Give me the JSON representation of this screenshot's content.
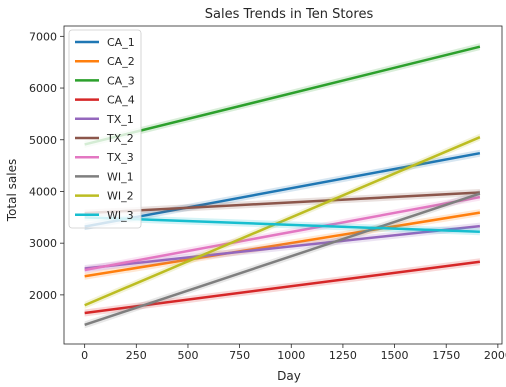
{
  "chart_data": {
    "type": "line",
    "title": "Sales Trends in Ten Stores",
    "xlabel": "Day",
    "ylabel": "Total sales",
    "xlim": [
      -100,
      2020
    ],
    "ylim": [
      1050,
      7200
    ],
    "x_ticks": [
      0,
      250,
      500,
      750,
      1000,
      1250,
      1500,
      1750,
      2000
    ],
    "y_ticks": [
      2000,
      3000,
      4000,
      5000,
      6000,
      7000
    ],
    "grid": false,
    "legend_position": "top-left",
    "series": [
      {
        "name": "CA_1",
        "color": "#1f77b4",
        "x": [
          0,
          1913
        ],
        "y": [
          3320,
          4740
        ]
      },
      {
        "name": "CA_2",
        "color": "#ff7f0e",
        "x": [
          0,
          1913
        ],
        "y": [
          2360,
          3590
        ]
      },
      {
        "name": "CA_3",
        "color": "#2ca02c",
        "x": [
          0,
          1913
        ],
        "y": [
          4910,
          6800
        ]
      },
      {
        "name": "CA_4",
        "color": "#d62728",
        "x": [
          0,
          1913
        ],
        "y": [
          1650,
          2640
        ]
      },
      {
        "name": "TX_1",
        "color": "#9467bd",
        "x": [
          0,
          1913
        ],
        "y": [
          2510,
          3330
        ]
      },
      {
        "name": "TX_2",
        "color": "#8c564b",
        "x": [
          0,
          1913
        ],
        "y": [
          3580,
          3980
        ]
      },
      {
        "name": "TX_3",
        "color": "#e377c2",
        "x": [
          0,
          1913
        ],
        "y": [
          2480,
          3890
        ]
      },
      {
        "name": "WI_1",
        "color": "#7f7f7f",
        "x": [
          0,
          1913
        ],
        "y": [
          1420,
          3960
        ]
      },
      {
        "name": "WI_2",
        "color": "#bcbd22",
        "x": [
          0,
          1913
        ],
        "y": [
          1800,
          5050
        ]
      },
      {
        "name": "WI_3",
        "color": "#17becf",
        "x": [
          0,
          1913
        ],
        "y": [
          3500,
          3220
        ]
      }
    ]
  }
}
